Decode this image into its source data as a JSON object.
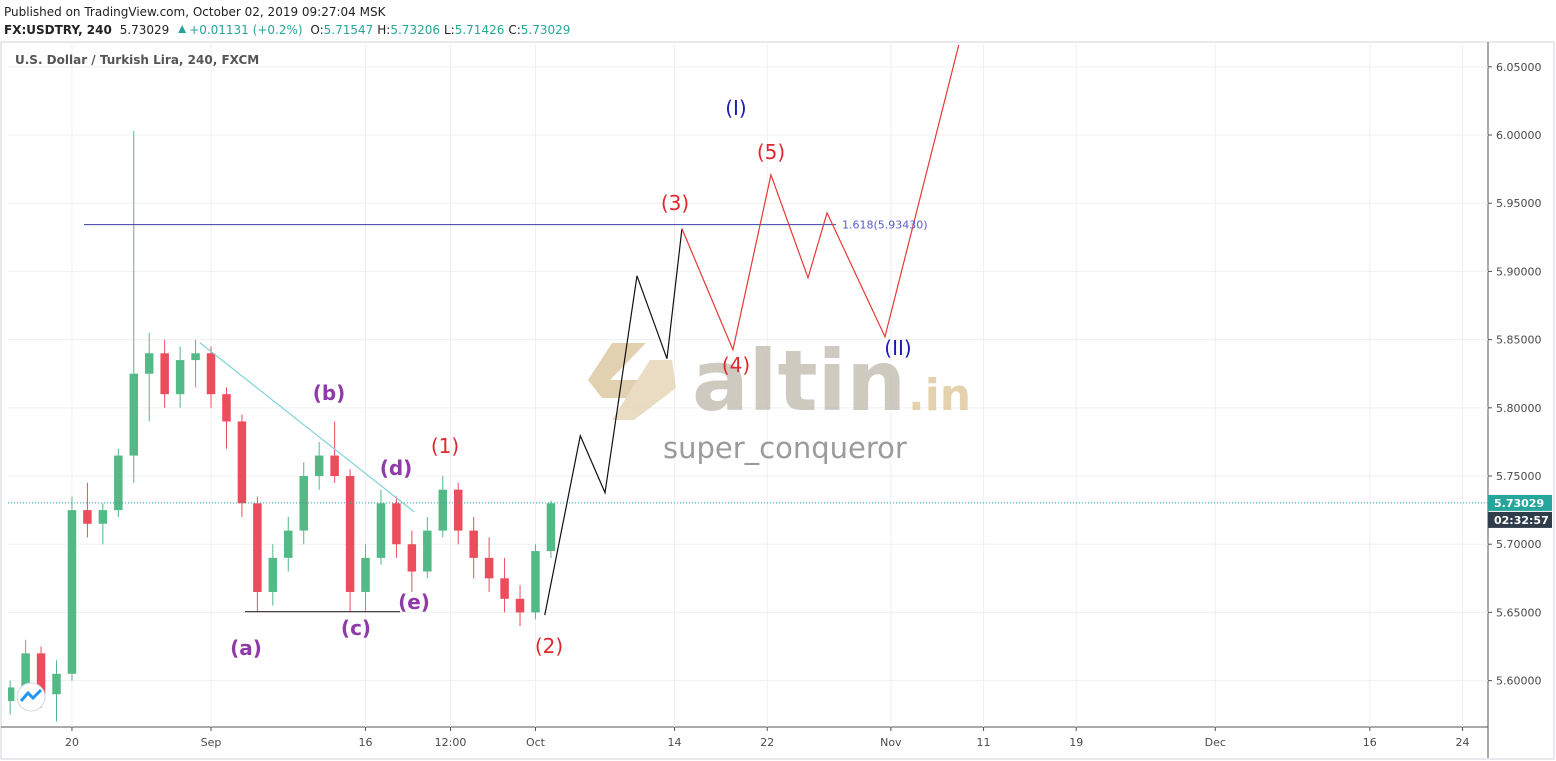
{
  "header": {
    "published": "Published on TradingView.com, October 02, 2019 09:27:04 MSK",
    "symbol": "FX:USDTRY, 240",
    "last": "5.73029",
    "change": "+0.01131 (+0.2%)",
    "quote": [
      {
        "k": "O:",
        "v": "5.71547"
      },
      {
        "k": "H:",
        "v": "5.73206"
      },
      {
        "k": "L:",
        "v": "5.71426"
      },
      {
        "k": "C:",
        "v": "5.73029"
      }
    ]
  },
  "chart_data": {
    "type": "candlestick",
    "title": "U.S. Dollar / Turkish Lira, 240, FXCM",
    "up_color": "#53b987",
    "down_color": "#eb4d5c",
    "x": [
      -4,
      -3,
      -2,
      -1,
      0,
      1,
      2,
      3,
      4,
      5,
      6,
      7,
      8,
      9,
      10,
      11,
      12,
      13,
      14,
      15,
      16,
      17,
      18,
      19,
      20,
      21,
      22,
      23,
      24,
      25,
      26,
      27,
      28,
      29,
      30,
      31
    ],
    "open": [
      5.585,
      5.595,
      5.62,
      5.59,
      5.605,
      5.725,
      5.715,
      5.725,
      5.765,
      5.825,
      5.84,
      5.81,
      5.835,
      5.84,
      5.81,
      5.79,
      5.73,
      5.665,
      5.69,
      5.71,
      5.75,
      5.765,
      5.75,
      5.665,
      5.69,
      5.73,
      5.7,
      5.68,
      5.71,
      5.74,
      5.71,
      5.69,
      5.675,
      5.66,
      5.65,
      5.695
    ],
    "high": [
      5.6,
      5.63,
      5.625,
      5.615,
      5.735,
      5.745,
      5.73,
      5.77,
      6.003,
      5.855,
      5.85,
      5.845,
      5.85,
      5.845,
      5.815,
      5.795,
      5.735,
      5.7,
      5.72,
      5.76,
      5.775,
      5.79,
      5.755,
      5.7,
      5.74,
      5.735,
      5.71,
      5.72,
      5.75,
      5.745,
      5.72,
      5.705,
      5.69,
      5.67,
      5.7,
      5.732
    ],
    "low": [
      5.575,
      5.59,
      5.58,
      5.57,
      5.6,
      5.705,
      5.7,
      5.72,
      5.745,
      5.79,
      5.8,
      5.8,
      5.815,
      5.8,
      5.77,
      5.72,
      5.65,
      5.655,
      5.68,
      5.7,
      5.74,
      5.745,
      5.65,
      5.65,
      5.685,
      5.69,
      5.665,
      5.675,
      5.705,
      5.7,
      5.675,
      5.665,
      5.65,
      5.64,
      5.645,
      5.69
    ],
    "close": [
      5.595,
      5.62,
      5.59,
      5.605,
      5.725,
      5.715,
      5.725,
      5.765,
      5.825,
      5.84,
      5.81,
      5.835,
      5.84,
      5.81,
      5.79,
      5.73,
      5.665,
      5.69,
      5.71,
      5.75,
      5.765,
      5.75,
      5.665,
      5.69,
      5.73,
      5.7,
      5.68,
      5.71,
      5.74,
      5.71,
      5.69,
      5.675,
      5.66,
      5.65,
      5.695,
      5.73
    ],
    "xlim": [
      -4.14,
      91.65
    ],
    "xticks": [
      {
        "value": 0,
        "label": "20"
      },
      {
        "value": 9,
        "label": "Sep"
      },
      {
        "value": 19,
        "label": "16"
      },
      {
        "value": 24.5,
        "label": "12:00"
      },
      {
        "value": 30,
        "label": "Oct"
      },
      {
        "value": 39,
        "label": "14"
      },
      {
        "value": 45,
        "label": "22"
      },
      {
        "value": 53,
        "label": "Nov"
      },
      {
        "value": 59,
        "label": "11"
      },
      {
        "value": 65,
        "label": "19"
      },
      {
        "value": 74,
        "label": "Dec"
      },
      {
        "value": 84,
        "label": "16"
      },
      {
        "value": 90,
        "label": "24"
      }
    ],
    "ylim": [
      5.566,
      6.066
    ],
    "yticks": [
      {
        "value": 5.6,
        "label": "5.60000"
      },
      {
        "value": 5.65,
        "label": "5.65000"
      },
      {
        "value": 5.7,
        "label": "5.70000"
      },
      {
        "value": 5.75,
        "label": "5.75000"
      },
      {
        "value": 5.8,
        "label": "5.80000"
      },
      {
        "value": 5.85,
        "label": "5.85000"
      },
      {
        "value": 5.9,
        "label": "5.90000"
      },
      {
        "value": 5.95,
        "label": "5.95000"
      },
      {
        "value": 6.0,
        "label": "6.00000"
      },
      {
        "value": 6.05,
        "label": "6.05000"
      }
    ],
    "grid": true,
    "last_price": 5.73029,
    "countdown": "02:32:57",
    "drawings": [
      {
        "color": "#7fd3d6",
        "points": [
          [
            8.28,
            5.8477
          ],
          [
            22.14,
            5.7238
          ]
        ]
      },
      {
        "color": "#444444",
        "points": [
          [
            11.2,
            5.6506
          ],
          [
            21.23,
            5.6506
          ]
        ]
      },
      {
        "color": "#111111",
        "points": [
          [
            30.6,
            5.648
          ],
          [
            32.9,
            5.7795
          ],
          [
            34.5,
            5.7378
          ],
          [
            36.57,
            5.8968
          ],
          [
            38.51,
            5.836
          ],
          [
            39.48,
            5.9313
          ]
        ]
      },
      {
        "color": "#e53935",
        "points": [
          [
            39.48,
            5.9313
          ],
          [
            42.78,
            5.8426
          ],
          [
            45.24,
            5.9708
          ],
          [
            47.64,
            5.8953
          ],
          [
            48.87,
            5.943
          ],
          [
            52.62,
            5.8521
          ],
          [
            57.48,
            6.0698
          ]
        ]
      }
    ],
    "fib": {
      "value": 5.9343,
      "x": [
        0.78,
        49.45
      ],
      "label": "1.618(5.93430)",
      "color": "#3c3ca8"
    },
    "wave_labels": [
      {
        "text": "(a)",
        "color": "#8e3aa8"
      },
      {
        "text": "(b)",
        "color": "#8e3aa8"
      },
      {
        "text": "(c)",
        "color": "#8e3aa8"
      },
      {
        "text": "(d)",
        "color": "#8e3aa8"
      },
      {
        "text": "(e)",
        "color": "#8e3aa8"
      },
      {
        "text": "(1)",
        "color": "#e0282e"
      },
      {
        "text": "(2)",
        "color": "#e0282e"
      },
      {
        "text": "(3)",
        "color": "#e0282e"
      },
      {
        "text": "(4)",
        "color": "#e0282e"
      },
      {
        "text": "(5)",
        "color": "#e0282e"
      },
      {
        "text": "(I)",
        "color": "#1a1ab0"
      },
      {
        "text": "(II)",
        "color": "#1a1ab0"
      }
    ],
    "watermark": {
      "brand": "altin",
      "suffix": ".in",
      "user": "super_conqueror"
    }
  }
}
